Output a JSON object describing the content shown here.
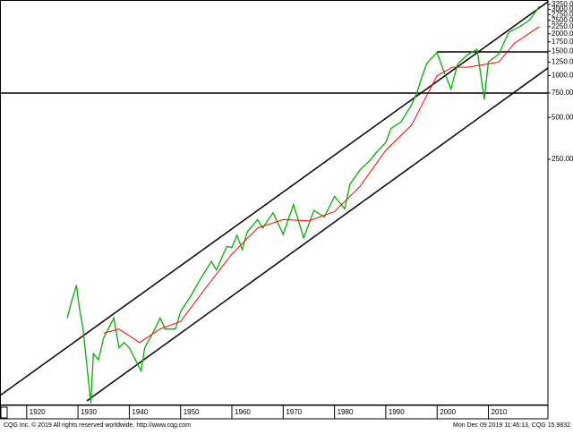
{
  "chart_data": {
    "type": "line",
    "log": true,
    "xlim": [
      1914.8,
      2021.6
    ],
    "xticks": [
      1920,
      1930,
      1940,
      1950,
      1960,
      1970,
      1980,
      1990,
      2000,
      2010
    ],
    "ylim": [
      4.3,
      3500
    ],
    "yticks": [
      {
        "value": 3250,
        "label": "3250.00"
      },
      {
        "value": 3000,
        "label": "3000.00"
      },
      {
        "value": 2750,
        "label": "2750.00"
      },
      {
        "value": 2500,
        "label": "2500.00"
      },
      {
        "value": 2250,
        "label": "2250.00"
      },
      {
        "value": 2000,
        "label": "2000.00"
      },
      {
        "value": 1750,
        "label": "1750.00"
      },
      {
        "value": 1500,
        "label": "1500.00"
      },
      {
        "value": 1250,
        "label": "1250.00"
      },
      {
        "value": 1000,
        "label": "1000.00"
      },
      {
        "value": 750,
        "label": "750.00"
      },
      {
        "value": 500,
        "label": "500.00"
      },
      {
        "value": 250,
        "label": "250.00"
      }
    ],
    "series": [
      {
        "color": "#00b000",
        "x": [
          1927.9,
          1928.8,
          1929.7,
          1930.3,
          1931,
          1932.5,
          1933,
          1934,
          1935,
          1937,
          1938,
          1939,
          1940,
          1942.3,
          1943,
          1945,
          1946,
          1947,
          1949,
          1950,
          1952,
          1954,
          1956,
          1957,
          1959,
          1960,
          1961,
          1962,
          1963,
          1965,
          1966,
          1968,
          1970,
          1972,
          1974,
          1976,
          1978,
          1980,
          1982,
          1983,
          1985,
          1987,
          1988,
          1990,
          1991,
          1993,
          1995,
          1996,
          1997,
          1998,
          2000,
          2001,
          2002.7,
          2004,
          2006,
          2007.8,
          2009.2,
          2010,
          2012,
          2014,
          2016,
          2018,
          2019.9
        ],
        "values": [
          18,
          24,
          31,
          21,
          15,
          4.4,
          10,
          9,
          13,
          18,
          11,
          12,
          11,
          7.5,
          11,
          15,
          18,
          15,
          15,
          20,
          26,
          35,
          46,
          40,
          59,
          58,
          71,
          56,
          75,
          92,
          80,
          103,
          72,
          118,
          68,
          107,
          96,
          135,
          110,
          165,
          210,
          247,
          277,
          330,
          417,
          466,
          615,
          740,
          970,
          1229,
          1469,
          1150,
          800,
          1211,
          1418,
          1549,
          676,
          1257,
          1426,
          2058,
          2238,
          2506,
          3140
        ]
      },
      {
        "color": "#ff0000",
        "x": [
          1935,
          1938,
          1942,
          1946,
          1950,
          1955,
          1960,
          1965,
          1970,
          1975,
          1980,
          1985,
          1990,
          1995,
          2000,
          2003,
          2006,
          2009,
          2012,
          2015,
          2019.9
        ],
        "values": [
          14,
          15,
          12,
          15,
          17,
          30,
          52,
          80,
          92,
          90,
          105,
          160,
          290,
          440,
          1000,
          1150,
          1150,
          1200,
          1250,
          1700,
          2250
        ]
      }
    ],
    "footer_left": "CQG Inc. © 2019 All rights reserved worldwide. http://www.cqg.com",
    "footer_right": "Mon Dec 09 2019 11:46:13, CQG 15.9832"
  }
}
